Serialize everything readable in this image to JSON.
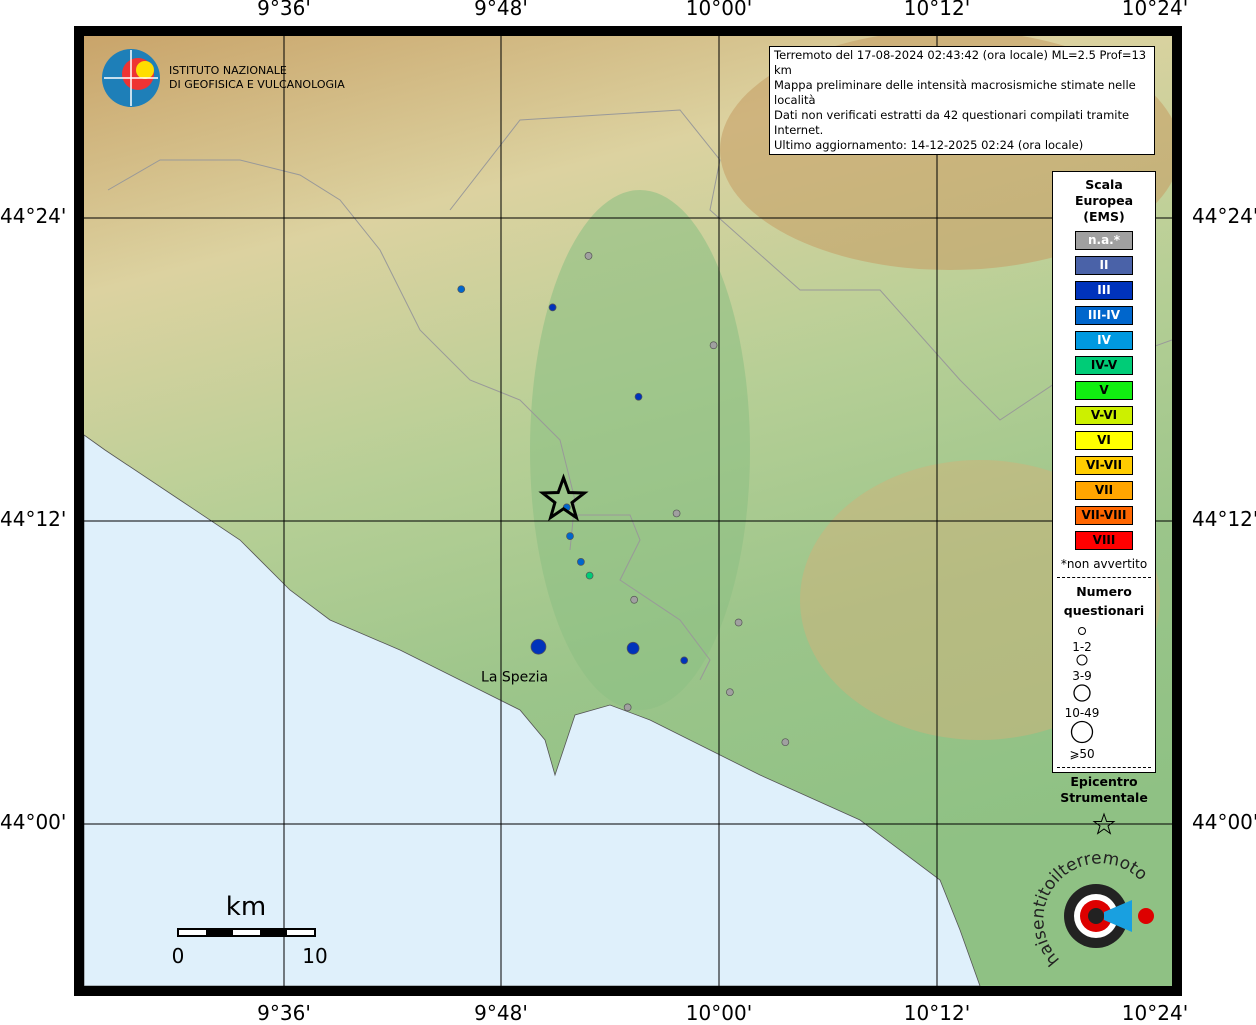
{
  "axes": {
    "top_lon": [
      "9°36'",
      "9°48'",
      "10°00'",
      "10°12'",
      "10°24'"
    ],
    "bottom_lon": [
      "9°36'",
      "9°48'",
      "10°00'",
      "10°12'",
      "10°24'"
    ],
    "left_lat": [
      "44°24'",
      "44°12'",
      "44°00'"
    ],
    "right_lat": [
      "44°24'",
      "44°12'",
      "44°00'"
    ]
  },
  "logo_ingv": {
    "line1": "ISTITUTO NAZIONALE",
    "line2": "DI GEOFISICA E VULCANOLOGIA"
  },
  "info": [
    "Terremoto del 17-08-2024 02:43:42 (ora locale) ML=2.5 Prof=13 km",
    "Mappa preliminare delle intensità macrosismiche stimate nelle località",
    "Dati non verificati estratti da 42 questionari compilati tramite Internet.",
    "Ultimo aggiornamento: 14-12-2025 02:24 (ora locale)"
  ],
  "legend": {
    "title": [
      "Scala",
      "Europea",
      "(EMS)"
    ],
    "classes": [
      {
        "label": "n.a.*",
        "color": "#a0a0a0",
        "text": "#fff"
      },
      {
        "label": "II",
        "color": "#4a62a8",
        "text": "#fff"
      },
      {
        "label": "III",
        "color": "#0033bb",
        "text": "#fff"
      },
      {
        "label": "III-IV",
        "color": "#0066cc",
        "text": "#fff"
      },
      {
        "label": "IV",
        "color": "#0099e0",
        "text": "#fff"
      },
      {
        "label": "IV-V",
        "color": "#00cc77",
        "text": "#000"
      },
      {
        "label": "V",
        "color": "#11ee11",
        "text": "#000"
      },
      {
        "label": "V-VI",
        "color": "#ccf000",
        "text": "#000"
      },
      {
        "label": "VI",
        "color": "#ffff00",
        "text": "#000"
      },
      {
        "label": "VI-VII",
        "color": "#ffcc00",
        "text": "#000"
      },
      {
        "label": "VII",
        "color": "#ffa500",
        "text": "#000"
      },
      {
        "label": "VII-VIII",
        "color": "#ff6600",
        "text": "#000"
      },
      {
        "label": "VIII",
        "color": "#ff0000",
        "text": "#000"
      }
    ],
    "note": "*non avvertito",
    "count_title": [
      "Numero",
      "questionari"
    ],
    "counts": [
      "1-2",
      "3-9",
      "10-49",
      "⩾50"
    ],
    "epicentre_title": [
      "Epicentro",
      "Strumentale"
    ]
  },
  "place": {
    "name": "La Spezia",
    "lon": 9.829,
    "lat": 44.104
  },
  "epicentre": {
    "lon": 9.857,
    "lat": 44.214
  },
  "points": [
    {
      "lon": 9.88,
      "lat": 44.375,
      "cls": 0,
      "n": 0
    },
    {
      "lon": 9.995,
      "lat": 44.316,
      "cls": 0,
      "n": 0
    },
    {
      "lon": 9.961,
      "lat": 44.205,
      "cls": 0,
      "n": 0
    },
    {
      "lon": 9.922,
      "lat": 44.148,
      "cls": 0,
      "n": 0
    },
    {
      "lon": 10.018,
      "lat": 44.133,
      "cls": 0,
      "n": 0
    },
    {
      "lon": 9.916,
      "lat": 44.077,
      "cls": 0,
      "n": 0
    },
    {
      "lon": 10.01,
      "lat": 44.087,
      "cls": 0,
      "n": 0
    },
    {
      "lon": 10.061,
      "lat": 44.054,
      "cls": 0,
      "n": 0
    },
    {
      "lon": 9.847,
      "lat": 44.341,
      "cls": 2,
      "n": 0
    },
    {
      "lon": 9.926,
      "lat": 44.282,
      "cls": 2,
      "n": 0
    },
    {
      "lon": 9.968,
      "lat": 44.108,
      "cls": 2,
      "n": 0
    },
    {
      "lon": 9.921,
      "lat": 44.116,
      "cls": 2,
      "n": 2
    },
    {
      "lon": 9.834,
      "lat": 44.117,
      "cls": 2,
      "n": 3
    },
    {
      "lon": 9.763,
      "lat": 44.353,
      "cls": 3,
      "n": 0
    },
    {
      "lon": 9.863,
      "lat": 44.19,
      "cls": 3,
      "n": 0
    },
    {
      "lon": 9.873,
      "lat": 44.173,
      "cls": 3,
      "n": 0
    },
    {
      "lon": 9.86,
      "lat": 44.209,
      "cls": 3,
      "n": 0
    },
    {
      "lon": 9.881,
      "lat": 44.164,
      "cls": 5,
      "n": 0
    }
  ],
  "scale": {
    "unit": "km",
    "min": "0",
    "max": "10"
  },
  "logo_hsit": "haisentitoilterremoto.it www."
}
